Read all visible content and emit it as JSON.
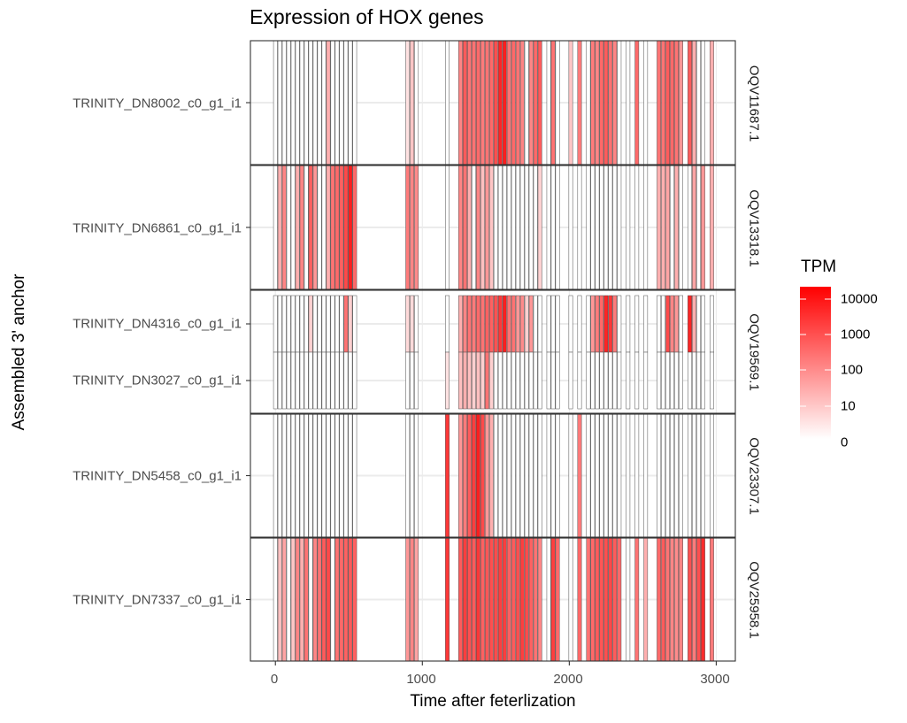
{
  "chart_data": {
    "type": "heatmap",
    "title": "Expression of HOX genes",
    "xlabel": "Time after feterlization",
    "ylabel": "Assembled 3' anchor",
    "x_ticks": [
      "0",
      "1000",
      "2000",
      "3000"
    ],
    "x_tick_values": [
      0,
      1000,
      2000,
      3000
    ],
    "xlim": [
      -170,
      3130
    ],
    "grid": true,
    "legend": {
      "title": "TPM",
      "labels": [
        "10000",
        "1000",
        "100",
        "10",
        "0"
      ],
      "position": "right",
      "colors": {
        "low": "#ffffff",
        "high": "#ff0000"
      }
    },
    "time_points": [
      0,
      30,
      60,
      90,
      120,
      150,
      180,
      210,
      240,
      270,
      300,
      330,
      360,
      390,
      420,
      450,
      480,
      510,
      540,
      900,
      930,
      960,
      1170,
      1260,
      1290,
      1320,
      1350,
      1380,
      1410,
      1440,
      1470,
      1500,
      1530,
      1560,
      1590,
      1620,
      1650,
      1680,
      1710,
      1740,
      1770,
      1800,
      1860,
      1890,
      1920,
      2010,
      2070,
      2130,
      2160,
      2190,
      2220,
      2250,
      2280,
      2310,
      2340,
      2400,
      2460,
      2520,
      2610,
      2640,
      2670,
      2700,
      2730,
      2760,
      2820,
      2850,
      2880,
      2910,
      2970
    ],
    "rows": [
      {
        "gene": "TRINITY_DN8002_c0_g1_i1",
        "facet": "OQV11687.1",
        "tpm": [
          0,
          0,
          0,
          0,
          0,
          0,
          0,
          0,
          0,
          0,
          0,
          0,
          20,
          0,
          0,
          0,
          0,
          0,
          0,
          2,
          8,
          0,
          0,
          100,
          500,
          200,
          200,
          300,
          150,
          200,
          300,
          800,
          4000,
          5000,
          200,
          300,
          200,
          100,
          0,
          100,
          300,
          500,
          0,
          200,
          0,
          8,
          150,
          0,
          150,
          100,
          300,
          500,
          200,
          100,
          0,
          0,
          300,
          0,
          200,
          200,
          500,
          300,
          200,
          50,
          500,
          20,
          0,
          0,
          20
        ]
      },
      {
        "gene": "TRINITY_DN6861_c0_g1_i1",
        "facet": "OQV13318.1",
        "tpm": [
          0,
          20,
          100,
          0,
          0,
          20,
          100,
          0,
          400,
          50,
          0,
          0,
          20,
          200,
          300,
          400,
          1000,
          5000,
          300,
          150,
          100,
          80,
          0,
          100,
          200,
          20,
          0,
          100,
          10,
          50,
          8,
          0,
          0,
          0,
          0,
          0,
          0,
          0,
          0,
          0,
          0,
          5,
          0,
          0,
          0,
          0,
          0,
          0,
          0,
          0,
          0,
          0,
          0,
          0,
          0,
          0,
          0,
          0,
          20,
          20,
          30,
          0,
          20,
          0,
          0,
          30,
          0,
          50,
          20
        ]
      },
      {
        "gene": "TRINITY_DN4316_c0_g1_i1",
        "facet": "OQV19569.1",
        "tpm": [
          0,
          0,
          0,
          0,
          0,
          0,
          0,
          0,
          5,
          0,
          0,
          0,
          0,
          0,
          0,
          0,
          200,
          5,
          0,
          3,
          3,
          0,
          0,
          20,
          100,
          200,
          150,
          300,
          200,
          400,
          400,
          700,
          2000,
          5000,
          200,
          200,
          50,
          80,
          5,
          50,
          0,
          0,
          0,
          0,
          0,
          0,
          0,
          0,
          50,
          150,
          300,
          4000,
          2000,
          150,
          0,
          0,
          0,
          0,
          0,
          0,
          1000,
          100,
          50,
          0,
          4000,
          20,
          0,
          0,
          0
        ]
      },
      {
        "gene": "TRINITY_DN3027_c0_g1_i1",
        "facet": "OQV19569.1",
        "tpm": [
          0,
          0,
          0,
          0,
          0,
          0,
          0,
          0,
          0,
          0,
          0,
          0,
          0,
          0,
          0,
          0,
          0,
          0,
          0,
          0,
          0,
          0,
          2,
          10,
          20,
          10,
          5,
          10,
          5,
          200,
          5,
          0,
          0,
          0,
          0,
          0,
          0,
          0,
          0,
          0,
          0,
          0,
          0,
          0,
          0,
          0,
          0,
          0,
          0,
          0,
          0,
          0,
          0,
          0,
          0,
          0,
          0,
          0,
          0,
          0,
          0,
          0,
          0,
          0,
          0,
          0,
          0,
          0,
          0
        ]
      },
      {
        "gene": "TRINITY_DN5458_c0_g1_i1",
        "facet": "OQV23307.1",
        "tpm": [
          0,
          0,
          0,
          0,
          0,
          0,
          0,
          0,
          0,
          0,
          0,
          0,
          0,
          0,
          0,
          0,
          0,
          0,
          0,
          0,
          0,
          0,
          2000,
          50,
          150,
          500,
          1500,
          5000,
          1000,
          50,
          20,
          0,
          0,
          0,
          0,
          0,
          0,
          0,
          0,
          0,
          0,
          0,
          0,
          0,
          0,
          0,
          150,
          0,
          0,
          0,
          0,
          0,
          0,
          0,
          0,
          0,
          0,
          0,
          0,
          0,
          0,
          0,
          0,
          0,
          0,
          0,
          0,
          0,
          0
        ]
      },
      {
        "gene": "TRINITY_DN7337_c0_g1_i1",
        "facet": "OQV25958.1",
        "tpm": [
          0,
          10,
          30,
          0,
          8,
          100,
          20,
          200,
          0,
          100,
          200,
          500,
          1000,
          0,
          200,
          300,
          400,
          500,
          400,
          50,
          100,
          30,
          2000,
          500,
          1500,
          800,
          500,
          2000,
          400,
          600,
          800,
          900,
          1500,
          1500,
          400,
          500,
          800,
          1500,
          900,
          400,
          200,
          100,
          0,
          1500,
          300,
          0,
          300,
          200,
          300,
          500,
          600,
          800,
          1000,
          500,
          300,
          0,
          200,
          20,
          300,
          500,
          200,
          100,
          80,
          100,
          800,
          150,
          800,
          3000,
          150
        ]
      }
    ]
  }
}
